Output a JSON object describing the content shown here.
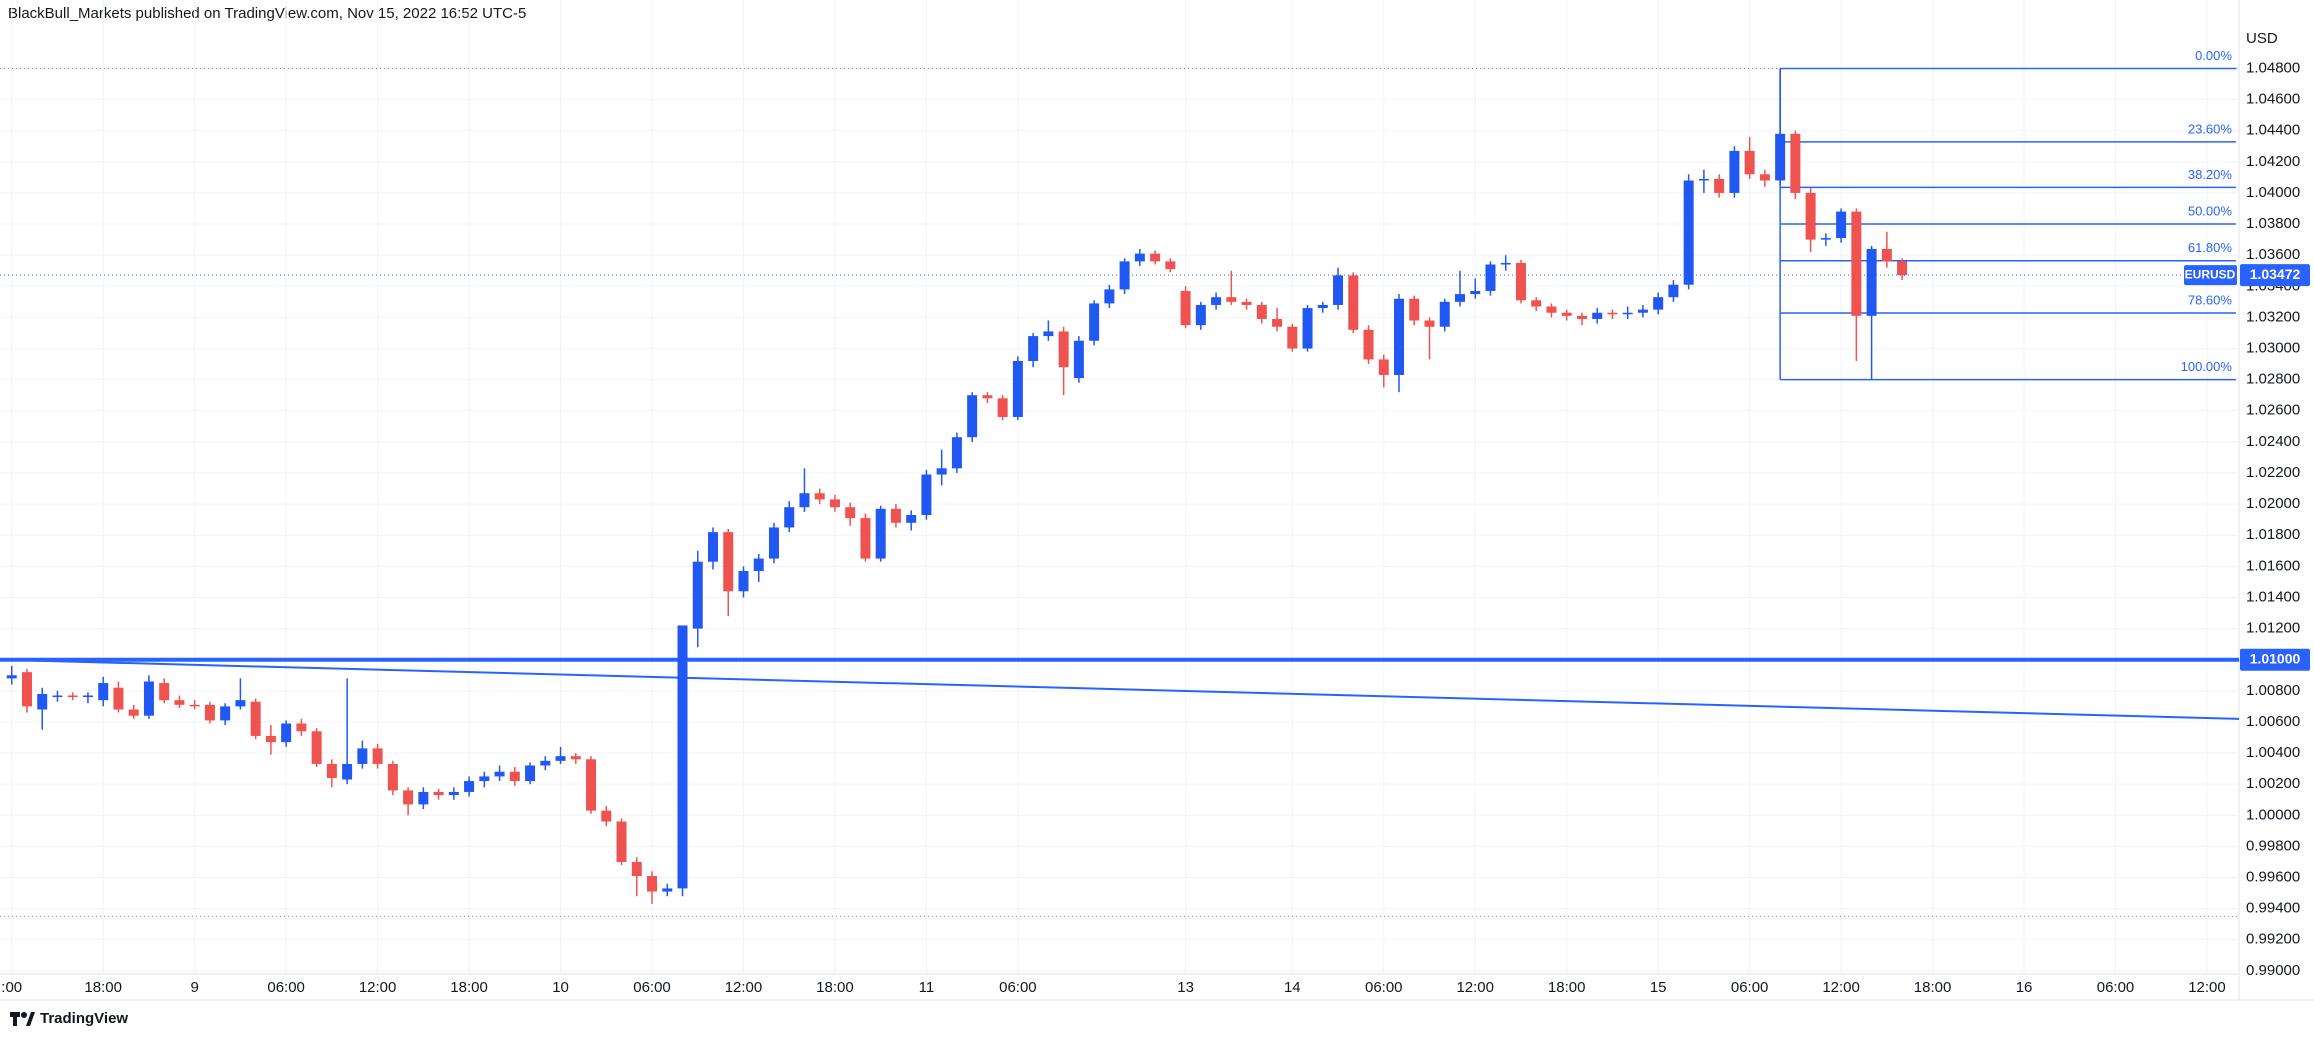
{
  "chart_data": {
    "type": "candlestick",
    "title": "BlackBull_Markets published on TradingView.com, Nov 15, 2022 16:52 UTC-5",
    "currency": "USD",
    "symbol": "EURUSD",
    "footer": "TradingView",
    "up_color": "#2157f3",
    "down_color": "#ef5350",
    "line_color": "#2962ff",
    "grid": true,
    "xlim": [
      -0.77,
      146.1
    ],
    "ylim": [
      0.9898,
      1.0524
    ],
    "xticks": [
      {
        "value": 0,
        "label": ":00"
      },
      {
        "value": 6,
        "label": "18:00"
      },
      {
        "value": 12,
        "label": "9"
      },
      {
        "value": 18,
        "label": "06:00"
      },
      {
        "value": 24,
        "label": "12:00"
      },
      {
        "value": 30,
        "label": "18:00"
      },
      {
        "value": 36,
        "label": "10"
      },
      {
        "value": 42,
        "label": "06:00"
      },
      {
        "value": 48,
        "label": "12:00"
      },
      {
        "value": 54,
        "label": "18:00"
      },
      {
        "value": 60,
        "label": "11"
      },
      {
        "value": 66,
        "label": "06:00"
      },
      {
        "value": 77,
        "label": "13"
      },
      {
        "value": 84,
        "label": "14"
      },
      {
        "value": 90,
        "label": "06:00"
      },
      {
        "value": 96,
        "label": "12:00"
      },
      {
        "value": 102,
        "label": "18:00"
      },
      {
        "value": 108,
        "label": "15"
      },
      {
        "value": 114,
        "label": "06:00"
      },
      {
        "value": 120,
        "label": "12:00"
      },
      {
        "value": 126,
        "label": "18:00"
      },
      {
        "value": 132,
        "label": "16"
      },
      {
        "value": 138,
        "label": "06:00"
      },
      {
        "value": 144,
        "label": "12:00"
      }
    ],
    "yticks": [
      {
        "value": 0.99,
        "label": "0.99000"
      },
      {
        "value": 0.992,
        "label": "0.99200"
      },
      {
        "value": 0.994,
        "label": "0.99400"
      },
      {
        "value": 0.996,
        "label": "0.99600"
      },
      {
        "value": 0.998,
        "label": "0.99800"
      },
      {
        "value": 1.0,
        "label": "1.00000"
      },
      {
        "value": 1.002,
        "label": "1.00200"
      },
      {
        "value": 1.004,
        "label": "1.00400"
      },
      {
        "value": 1.006,
        "label": "1.00600"
      },
      {
        "value": 1.008,
        "label": "1.00800"
      },
      {
        "value": 1.01,
        "label": "1.01000"
      },
      {
        "value": 1.012,
        "label": "1.01200"
      },
      {
        "value": 1.014,
        "label": "1.01400"
      },
      {
        "value": 1.016,
        "label": "1.01600"
      },
      {
        "value": 1.018,
        "label": "1.01800"
      },
      {
        "value": 1.02,
        "label": "1.02000"
      },
      {
        "value": 1.022,
        "label": "1.02200"
      },
      {
        "value": 1.024,
        "label": "1.02400"
      },
      {
        "value": 1.026,
        "label": "1.02600"
      },
      {
        "value": 1.028,
        "label": "1.02800"
      },
      {
        "value": 1.03,
        "label": "1.03000"
      },
      {
        "value": 1.032,
        "label": "1.03200"
      },
      {
        "value": 1.034,
        "label": "1.03400"
      },
      {
        "value": 1.036,
        "label": "1.03600"
      },
      {
        "value": 1.038,
        "label": "1.03800"
      },
      {
        "value": 1.04,
        "label": "1.04000"
      },
      {
        "value": 1.042,
        "label": "1.04200"
      },
      {
        "value": 1.044,
        "label": "1.04400"
      },
      {
        "value": 1.046,
        "label": "1.04600"
      },
      {
        "value": 1.048,
        "label": "1.04800"
      }
    ],
    "open": [
      1.0088,
      1.0092,
      1.0068,
      1.0076,
      1.0077,
      1.0076,
      1.0074,
      1.0082,
      1.0068,
      1.0064,
      1.0085,
      1.0074,
      1.0071,
      1.0071,
      1.0061,
      1.007,
      1.0073,
      1.0051,
      1.0047,
      1.0059,
      1.0054,
      1.0033,
      1.0023,
      1.0033,
      1.0043,
      1.0033,
      1.0016,
      1.0007,
      1.0015,
      1.0013,
      1.0015,
      1.0022,
      1.0025,
      1.0028,
      1.0022,
      1.0032,
      1.0035,
      1.0038,
      1.0036,
      1.0003,
      0.9996,
      0.997,
      0.9961,
      0.9951,
      0.9953,
      1.012,
      1.0163,
      1.0182,
      1.0144,
      1.0157,
      1.0165,
      1.0185,
      1.0198,
      1.0207,
      1.0203,
      1.0198,
      1.0191,
      1.0165,
      1.0197,
      1.0188,
      1.0193,
      1.0219,
      1.0223,
      1.0243,
      1.027,
      1.0268,
      1.0256,
      1.0292,
      1.0308,
      1.0311,
      1.0281,
      1.0305,
      1.0329,
      1.0338,
      1.0356,
      1.0361,
      1.0356,
      1.0337,
      1.0315,
      1.0328,
      1.0333,
      1.033,
      1.0328,
      1.0319,
      1.0314,
      1.03,
      1.0326,
      1.0328,
      1.0347,
      1.0312,
      1.0293,
      1.0283,
      1.0332,
      1.0318,
      1.0314,
      1.033,
      1.0335,
      1.0337,
      1.0354,
      1.0355,
      1.0331,
      1.0327,
      1.0323,
      1.0321,
      1.0319,
      1.0323,
      1.0322,
      1.0323,
      1.0325,
      1.0333,
      1.0341,
      1.0408,
      1.0409,
      1.04,
      1.0427,
      1.0412,
      1.0408,
      1.0438,
      1.04,
      1.037,
      1.0371,
      1.0388,
      1.0321,
      1.0364,
      1.0356
    ],
    "high": [
      1.0096,
      1.0094,
      1.0082,
      1.008,
      1.0079,
      1.0079,
      1.0089,
      1.0086,
      1.0071,
      1.009,
      1.0088,
      1.0077,
      1.0074,
      1.0073,
      1.0072,
      1.0088,
      1.0075,
      1.0058,
      1.0061,
      1.0062,
      1.0056,
      1.0036,
      1.0088,
      1.0048,
      1.0046,
      1.0035,
      1.0018,
      1.0018,
      1.0017,
      1.0018,
      1.0025,
      1.0028,
      1.0032,
      1.0031,
      1.0034,
      1.0038,
      1.0044,
      1.004,
      1.0038,
      1.0006,
      0.9998,
      0.9973,
      0.9964,
      0.9956,
      1.0122,
      1.017,
      1.0185,
      1.0184,
      1.016,
      1.0168,
      1.0188,
      1.0202,
      1.0223,
      1.021,
      1.0206,
      1.0201,
      1.0194,
      1.0199,
      1.02,
      1.0196,
      1.0222,
      1.0235,
      1.0246,
      1.0272,
      1.0272,
      1.027,
      1.0295,
      1.031,
      1.0318,
      1.0314,
      1.0308,
      1.0331,
      1.0341,
      1.0358,
      1.0364,
      1.0363,
      1.0358,
      1.034,
      1.033,
      1.0336,
      1.035,
      1.0332,
      1.033,
      1.0326,
      1.0316,
      1.0328,
      1.033,
      1.0352,
      1.0349,
      1.0315,
      1.0296,
      1.0335,
      1.0334,
      1.032,
      1.0332,
      1.035,
      1.0345,
      1.0356,
      1.036,
      1.0357,
      1.0333,
      1.0329,
      1.0325,
      1.0323,
      1.0326,
      1.0325,
      1.0327,
      1.0328,
      1.0336,
      1.0344,
      1.0412,
      1.0415,
      1.0412,
      1.043,
      1.0436,
      1.0415,
      1.048,
      1.044,
      1.0403,
      1.0374,
      1.039,
      1.039,
      1.0366,
      1.0375,
      1.0358
    ],
    "low": [
      1.0084,
      1.0066,
      1.0055,
      1.0073,
      1.0074,
      1.0072,
      1.007,
      1.0066,
      1.0062,
      1.0062,
      1.0072,
      1.0069,
      1.0068,
      1.0059,
      1.0058,
      1.0068,
      1.0049,
      1.0039,
      1.0044,
      1.0051,
      1.0031,
      1.0018,
      1.002,
      1.003,
      1.003,
      1.0013,
      1.0,
      1.0004,
      1.001,
      1.001,
      1.0012,
      1.0018,
      1.0022,
      1.0019,
      1.002,
      1.0029,
      1.0033,
      1.0033,
      1.0001,
      0.9993,
      0.9968,
      0.9948,
      0.9943,
      0.9948,
      0.9948,
      1.0108,
      1.0158,
      1.0128,
      1.014,
      1.015,
      1.0162,
      1.0182,
      1.0195,
      1.02,
      1.0195,
      1.0186,
      1.0163,
      1.0163,
      1.0185,
      1.0183,
      1.019,
      1.0212,
      1.022,
      1.024,
      1.0265,
      1.0254,
      1.0254,
      1.0288,
      1.0305,
      1.027,
      1.0278,
      1.0302,
      1.0326,
      1.0335,
      1.0353,
      1.0354,
      1.0349,
      1.0313,
      1.0312,
      1.0325,
      1.0328,
      1.0325,
      1.0316,
      1.0311,
      1.0298,
      1.0298,
      1.0323,
      1.0325,
      1.031,
      1.029,
      1.0275,
      1.0272,
      1.0315,
      1.0293,
      1.0311,
      1.0327,
      1.0332,
      1.0334,
      1.035,
      1.0329,
      1.0324,
      1.032,
      1.0318,
      1.0315,
      1.0316,
      1.0319,
      1.0319,
      1.032,
      1.0322,
      1.033,
      1.0338,
      1.04,
      1.0397,
      1.0397,
      1.0409,
      1.0404,
      1.0405,
      1.0396,
      1.0362,
      1.0366,
      1.0368,
      1.0292,
      1.028,
      1.0352,
      1.0344
    ],
    "close": [
      1.009,
      1.007,
      1.0078,
      1.0077,
      1.0076,
      1.0077,
      1.0085,
      1.0068,
      1.0064,
      1.0086,
      1.0074,
      1.0071,
      1.007,
      1.0061,
      1.007,
      1.0074,
      1.0051,
      1.0047,
      1.0059,
      1.0054,
      1.0033,
      1.0024,
      1.0033,
      1.0043,
      1.0033,
      1.0016,
      1.0007,
      1.0015,
      1.0013,
      1.0015,
      1.0022,
      1.0025,
      1.0028,
      1.0022,
      1.0032,
      1.0035,
      1.0038,
      1.0036,
      1.0003,
      0.9996,
      0.997,
      0.9961,
      0.9951,
      0.9953,
      1.0122,
      1.0163,
      1.0182,
      1.0144,
      1.0157,
      1.0165,
      1.0185,
      1.0198,
      1.0207,
      1.0203,
      1.0198,
      1.0191,
      1.0165,
      1.0197,
      1.0188,
      1.0193,
      1.0219,
      1.0223,
      1.0243,
      1.027,
      1.0268,
      1.0256,
      1.0292,
      1.0308,
      1.0311,
      1.0288,
      1.0305,
      1.0329,
      1.0338,
      1.0356,
      1.0361,
      1.0356,
      1.0351,
      1.0315,
      1.0328,
      1.0333,
      1.033,
      1.0328,
      1.0319,
      1.0314,
      1.03,
      1.0326,
      1.0328,
      1.0347,
      1.0312,
      1.0293,
      1.0283,
      1.0332,
      1.0318,
      1.0314,
      1.033,
      1.0335,
      1.0337,
      1.0354,
      1.0355,
      1.0331,
      1.0327,
      1.0323,
      1.0321,
      1.0319,
      1.0323,
      1.0322,
      1.0323,
      1.0325,
      1.0333,
      1.0341,
      1.0408,
      1.0409,
      1.04,
      1.0427,
      1.0412,
      1.0408,
      1.0438,
      1.04,
      1.037,
      1.0371,
      1.0388,
      1.0321,
      1.0364,
      1.0356,
      1.03472
    ],
    "hline": {
      "value": 1.01,
      "label": "1.01000"
    },
    "trendline": {
      "x": [
        -0.77,
        146.1
      ],
      "y": [
        1.01,
        1.0062
      ]
    },
    "dotted_levels": [
      1.048,
      0.9935
    ],
    "fib": {
      "anchor_index": 116,
      "end_index": 145.9,
      "high": 1.048,
      "low": 1.028,
      "levels": [
        {
          "value": 0,
          "label": "0.00%"
        },
        {
          "value": 23.6,
          "label": "23.60%"
        },
        {
          "value": 38.2,
          "label": "38.20%"
        },
        {
          "value": 50,
          "label": "50.00%"
        },
        {
          "value": 61.8,
          "label": "61.80%"
        },
        {
          "value": 78.6,
          "label": "78.60%"
        },
        {
          "value": 100,
          "label": "100.00%"
        }
      ]
    }
  }
}
